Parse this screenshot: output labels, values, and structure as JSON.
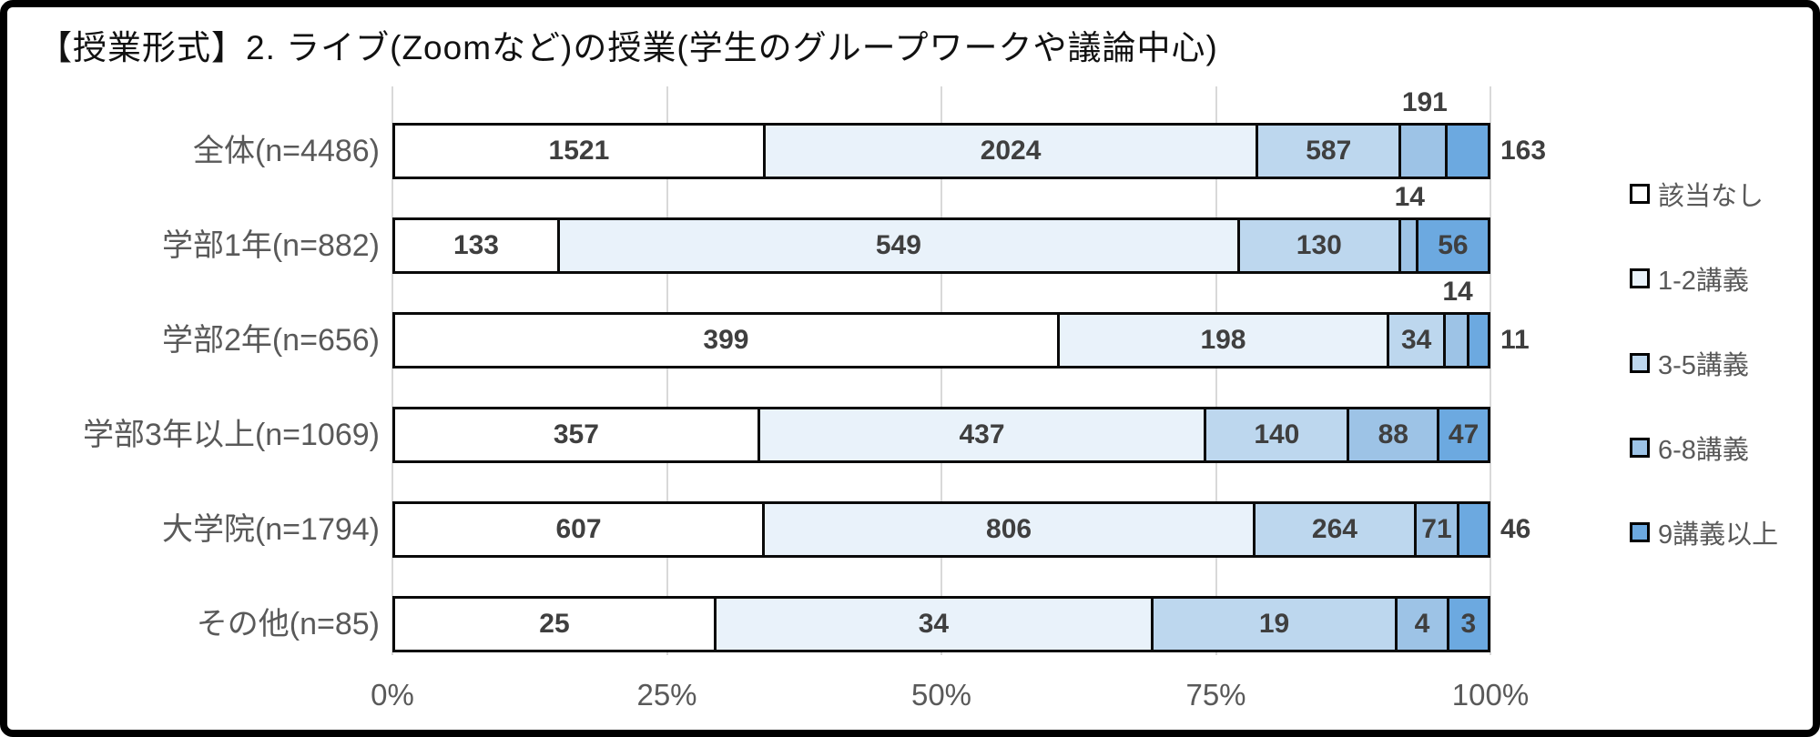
{
  "title": "【授業形式】2. ライブ(Zoomなど)の授業(学生のグループワークや議論中心)",
  "chart_data": {
    "type": "bar",
    "stacked": true,
    "orientation": "horizontal",
    "grid": "vertical",
    "legend_position": "right",
    "xlim": [
      0,
      100
    ],
    "x_ticks": [
      "0%",
      "25%",
      "50%",
      "75%",
      "100%"
    ],
    "categories": [
      "全体(n=4486)",
      "学部1年(n=882)",
      "学部2年(n=656)",
      "学部3年以上(n=1069)",
      "大学院(n=1794)",
      "その他(n=85)"
    ],
    "series": [
      {
        "name": "該当なし",
        "color": "#ffffff",
        "values": [
          1521,
          133,
          399,
          357,
          607,
          25
        ],
        "label_positions": [
          "in",
          "in",
          "in",
          "in",
          "in",
          "in"
        ]
      },
      {
        "name": "1-2講義",
        "color": "#e9f2fa",
        "values": [
          2024,
          549,
          198,
          437,
          806,
          34
        ],
        "label_positions": [
          "in",
          "in",
          "in",
          "in",
          "in",
          "in"
        ]
      },
      {
        "name": "3-5講義",
        "color": "#bdd7ee",
        "values": [
          587,
          130,
          34,
          140,
          264,
          19
        ],
        "label_positions": [
          "in",
          "in",
          "in",
          "in",
          "in",
          "in"
        ]
      },
      {
        "name": "6-8講義",
        "color": "#9dc3e6",
        "values": [
          191,
          14,
          14,
          88,
          71,
          4
        ],
        "label_positions": [
          "above",
          "above",
          "above",
          "in",
          "in",
          "in"
        ]
      },
      {
        "name": "9講義以上",
        "color": "#6ca9e0",
        "values": [
          163,
          56,
          11,
          47,
          46,
          3
        ],
        "label_positions": [
          "right",
          "in",
          "right",
          "in",
          "right",
          "in"
        ]
      }
    ],
    "colors": {
      "grid": "#d9d9d9",
      "bar_border": "#0a0a0a",
      "value_text": "#3f3f3f",
      "axis_text": "#595959"
    }
  }
}
